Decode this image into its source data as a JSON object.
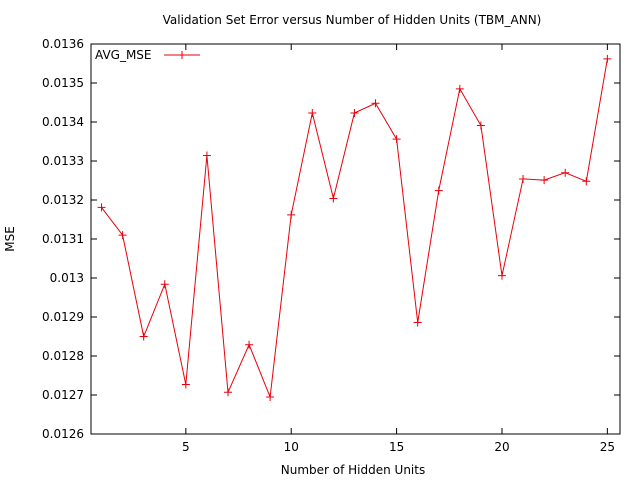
{
  "chart_data": {
    "type": "line",
    "title": "Validation Set Error versus Number of Hidden Units (TBM_ANN)",
    "xlabel": "Number of Hidden Units",
    "ylabel": "MSE",
    "xlim": [
      0.5,
      25.6
    ],
    "ylim": [
      0.0126,
      0.0136
    ],
    "xticks": [
      5,
      10,
      15,
      20,
      25
    ],
    "yticks": [
      "0.0126",
      "0.0127",
      "0.0128",
      "0.0129",
      "0.013",
      "0.0131",
      "0.0132",
      "0.0133",
      "0.0134",
      "0.0135",
      "0.0136"
    ],
    "grid": false,
    "legend_position": "top-left",
    "series": [
      {
        "name": "AVG_MSE",
        "color": "#e8000b",
        "marker": "plus",
        "x": [
          1,
          2,
          3,
          4,
          5,
          6,
          7,
          8,
          9,
          10,
          11,
          12,
          13,
          14,
          15,
          16,
          17,
          18,
          19,
          20,
          21,
          22,
          23,
          24,
          25
        ],
        "y": [
          0.013181,
          0.01311,
          0.01285,
          0.012984,
          0.012727,
          0.013314,
          0.012707,
          0.012829,
          0.012695,
          0.013162,
          0.013423,
          0.013204,
          0.013423,
          0.013448,
          0.013356,
          0.012886,
          0.013224,
          0.013485,
          0.013391,
          0.013006,
          0.013254,
          0.013251,
          0.01327,
          0.013248,
          0.013562
        ]
      }
    ]
  }
}
